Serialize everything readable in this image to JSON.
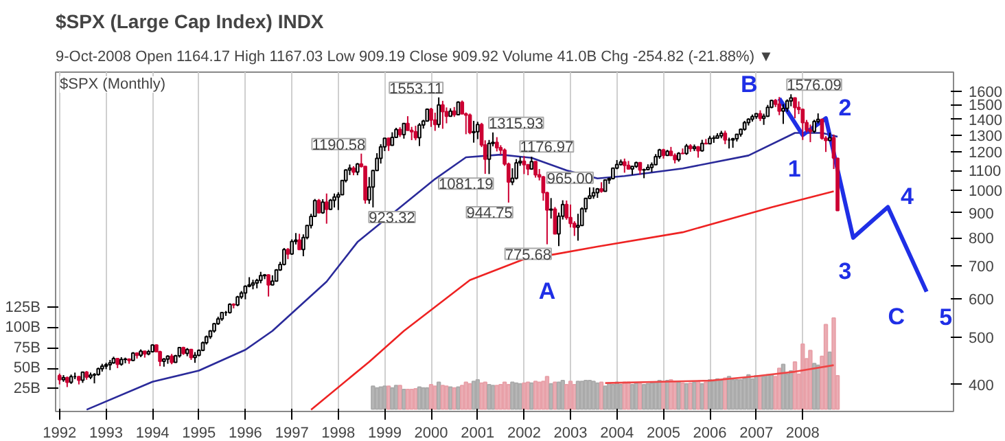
{
  "chart_data": {
    "type": "candlestick",
    "title": "$SPX (Large Cap Index) INDX",
    "subtitle": "9-Oct-2008      Open 1164.17   High 1167.03   Low 909.19   Close 909.92   Volume 41.0B   Chg -254.82 (-21.88%) ▼",
    "x": [
      "1992-01",
      "1992-02",
      "1992-03",
      "1992-04",
      "1992-05",
      "1992-06",
      "1992-07",
      "1992-08",
      "1992-09",
      "1992-10",
      "1992-11",
      "1992-12",
      "1993-01",
      "1993-02",
      "1993-03",
      "1993-04",
      "1993-05",
      "1993-06",
      "1993-07",
      "1993-08",
      "1993-09",
      "1993-10",
      "1993-11",
      "1993-12",
      "1994-01",
      "1994-02",
      "1994-03",
      "1994-04",
      "1994-05",
      "1994-06",
      "1994-07",
      "1994-08",
      "1994-09",
      "1994-10",
      "1994-11",
      "1994-12",
      "1995-01",
      "1995-02",
      "1995-03",
      "1995-04",
      "1995-05",
      "1995-06",
      "1995-07",
      "1995-08",
      "1995-09",
      "1995-10",
      "1995-11",
      "1995-12",
      "1996-01",
      "1996-02",
      "1996-03",
      "1996-04",
      "1996-05",
      "1996-06",
      "1996-07",
      "1996-08",
      "1996-09",
      "1996-10",
      "1996-11",
      "1996-12",
      "1997-01",
      "1997-02",
      "1997-03",
      "1997-04",
      "1997-05",
      "1997-06",
      "1997-07",
      "1997-08",
      "1997-09",
      "1997-10",
      "1997-11",
      "1997-12",
      "1998-01",
      "1998-02",
      "1998-03",
      "1998-04",
      "1998-05",
      "1998-06",
      "1998-07",
      "1998-08",
      "1998-09",
      "1998-10",
      "1998-11",
      "1998-12",
      "1999-01",
      "1999-02",
      "1999-03",
      "1999-04",
      "1999-05",
      "1999-06",
      "1999-07",
      "1999-08",
      "1999-09",
      "1999-10",
      "1999-11",
      "1999-12",
      "2000-01",
      "2000-02",
      "2000-03",
      "2000-04",
      "2000-05",
      "2000-06",
      "2000-07",
      "2000-08",
      "2000-09",
      "2000-10",
      "2000-11",
      "2000-12",
      "2001-01",
      "2001-02",
      "2001-03",
      "2001-04",
      "2001-05",
      "2001-06",
      "2001-07",
      "2001-08",
      "2001-09",
      "2001-10",
      "2001-11",
      "2001-12",
      "2002-01",
      "2002-02",
      "2002-03",
      "2002-04",
      "2002-05",
      "2002-06",
      "2002-07",
      "2002-08",
      "2002-09",
      "2002-10",
      "2002-11",
      "2002-12",
      "2003-01",
      "2003-02",
      "2003-03",
      "2003-04",
      "2003-05",
      "2003-06",
      "2003-07",
      "2003-08",
      "2003-09",
      "2003-10",
      "2003-11",
      "2003-12",
      "2004-01",
      "2004-02",
      "2004-03",
      "2004-04",
      "2004-05",
      "2004-06",
      "2004-07",
      "2004-08",
      "2004-09",
      "2004-10",
      "2004-11",
      "2004-12",
      "2005-01",
      "2005-02",
      "2005-03",
      "2005-04",
      "2005-05",
      "2005-06",
      "2005-07",
      "2005-08",
      "2005-09",
      "2005-10",
      "2005-11",
      "2005-12",
      "2006-01",
      "2006-02",
      "2006-03",
      "2006-04",
      "2006-05",
      "2006-06",
      "2006-07",
      "2006-08",
      "2006-09",
      "2006-10",
      "2006-11",
      "2006-12",
      "2007-01",
      "2007-02",
      "2007-03",
      "2007-04",
      "2007-05",
      "2007-06",
      "2007-07",
      "2007-08",
      "2007-09",
      "2007-10",
      "2007-11",
      "2007-12",
      "2008-01",
      "2008-02",
      "2008-03",
      "2008-04",
      "2008-05",
      "2008-06",
      "2008-07",
      "2008-08",
      "2008-09",
      "2008-10"
    ],
    "ohlc": [
      [
        417,
        421,
        400,
        409
      ],
      [
        409,
        418,
        405,
        413
      ],
      [
        413,
        415,
        395,
        404
      ],
      [
        404,
        419,
        401,
        415
      ],
      [
        415,
        423,
        410,
        415
      ],
      [
        415,
        416,
        400,
        408
      ],
      [
        408,
        425,
        403,
        424
      ],
      [
        424,
        426,
        409,
        414
      ],
      [
        414,
        423,
        410,
        418
      ],
      [
        418,
        422,
        402,
        419
      ],
      [
        419,
        433,
        417,
        431
      ],
      [
        431,
        441,
        425,
        436
      ],
      [
        436,
        443,
        430,
        439
      ],
      [
        439,
        449,
        428,
        443
      ],
      [
        443,
        456,
        441,
        452
      ],
      [
        452,
        452,
        432,
        440
      ],
      [
        440,
        455,
        437,
        450
      ],
      [
        450,
        454,
        442,
        451
      ],
      [
        451,
        452,
        441,
        448
      ],
      [
        448,
        466,
        447,
        464
      ],
      [
        464,
        465,
        452,
        459
      ],
      [
        459,
        472,
        455,
        468
      ],
      [
        468,
        468,
        454,
        462
      ],
      [
        462,
        471,
        459,
        467
      ],
      [
        467,
        483,
        465,
        482
      ],
      [
        482,
        483,
        466,
        467
      ],
      [
        467,
        469,
        436,
        446
      ],
      [
        446,
        453,
        435,
        451
      ],
      [
        451,
        459,
        441,
        457
      ],
      [
        457,
        462,
        440,
        444
      ],
      [
        444,
        460,
        443,
        458
      ],
      [
        458,
        477,
        454,
        476
      ],
      [
        476,
        478,
        460,
        463
      ],
      [
        463,
        475,
        457,
        472
      ],
      [
        472,
        473,
        449,
        454
      ],
      [
        454,
        466,
        443,
        459
      ],
      [
        459,
        472,
        457,
        470
      ],
      [
        470,
        490,
        468,
        487
      ],
      [
        487,
        504,
        483,
        501
      ],
      [
        501,
        517,
        496,
        515
      ],
      [
        515,
        535,
        511,
        533
      ],
      [
        533,
        551,
        530,
        545
      ],
      [
        545,
        563,
        540,
        562
      ],
      [
        562,
        566,
        553,
        562
      ],
      [
        562,
        587,
        559,
        584
      ],
      [
        584,
        587,
        573,
        582
      ],
      [
        582,
        608,
        579,
        605
      ],
      [
        605,
        622,
        599,
        616
      ],
      [
        616,
        639,
        598,
        636
      ],
      [
        636,
        664,
        633,
        640
      ],
      [
        640,
        656,
        627,
        646
      ],
      [
        646,
        659,
        630,
        654
      ],
      [
        654,
        681,
        645,
        669
      ],
      [
        669,
        674,
        658,
        671
      ],
      [
        671,
        673,
        606,
        640
      ],
      [
        640,
        670,
        639,
        652
      ],
      [
        652,
        690,
        652,
        687
      ],
      [
        687,
        714,
        684,
        705
      ],
      [
        705,
        762,
        702,
        757
      ],
      [
        757,
        762,
        723,
        741
      ],
      [
        741,
        794,
        738,
        786
      ],
      [
        786,
        818,
        775,
        791
      ],
      [
        791,
        815,
        755,
        757
      ],
      [
        757,
        813,
        733,
        801
      ],
      [
        801,
        849,
        794,
        848
      ],
      [
        848,
        896,
        836,
        885
      ],
      [
        885,
        961,
        884,
        954
      ],
      [
        954,
        961,
        899,
        900
      ],
      [
        900,
        960,
        896,
        947
      ],
      [
        947,
        986,
        855,
        915
      ],
      [
        915,
        961,
        912,
        955
      ],
      [
        955,
        986,
        923,
        970
      ],
      [
        970,
        992,
        912,
        980
      ],
      [
        980,
        1050,
        980,
        1049
      ],
      [
        1049,
        1106,
        1039,
        1102
      ],
      [
        1102,
        1131,
        1076,
        1112
      ],
      [
        1112,
        1122,
        1075,
        1091
      ],
      [
        1091,
        1139,
        1075,
        1134
      ],
      [
        1134,
        1190.58,
        1115,
        1121
      ],
      [
        1121,
        1122,
        940,
        957
      ],
      [
        957,
        1066,
        939,
        1017
      ],
      [
        1017,
        1103,
        923.32,
        1099
      ],
      [
        1099,
        1193,
        1098,
        1164
      ],
      [
        1164,
        1245,
        1136,
        1229
      ],
      [
        1229,
        1281,
        1205,
        1280
      ],
      [
        1280,
        1283,
        1206,
        1238
      ],
      [
        1238,
        1317,
        1236,
        1286
      ],
      [
        1286,
        1345,
        1282,
        1335
      ],
      [
        1335,
        1349,
        1288,
        1302
      ],
      [
        1302,
        1374,
        1278,
        1373
      ],
      [
        1373,
        1421,
        1328,
        1329
      ],
      [
        1329,
        1351,
        1269,
        1320
      ],
      [
        1320,
        1358,
        1268,
        1283
      ],
      [
        1283,
        1375,
        1234,
        1363
      ],
      [
        1363,
        1397,
        1340,
        1389
      ],
      [
        1389,
        1474,
        1387,
        1469
      ],
      [
        1469,
        1478,
        1351,
        1395
      ],
      [
        1395,
        1445,
        1326,
        1366
      ],
      [
        1366,
        1553.11,
        1346,
        1499
      ],
      [
        1499,
        1528,
        1339,
        1452
      ],
      [
        1452,
        1481,
        1374,
        1421
      ],
      [
        1421,
        1475,
        1418,
        1455
      ],
      [
        1455,
        1484,
        1416,
        1431
      ],
      [
        1431,
        1525,
        1431,
        1518
      ],
      [
        1518,
        1530,
        1436,
        1437
      ],
      [
        1437,
        1446,
        1305,
        1429
      ],
      [
        1429,
        1439,
        1305,
        1315
      ],
      [
        1315,
        1390,
        1254,
        1320
      ],
      [
        1320,
        1384,
        1275,
        1366
      ],
      [
        1366,
        1377,
        1228,
        1240
      ],
      [
        1240,
        1268,
        1082,
        1160
      ],
      [
        1160,
        1270,
        1081.19,
        1250
      ],
      [
        1250,
        1315.93,
        1232,
        1256
      ],
      [
        1256,
        1287,
        1203,
        1224
      ],
      [
        1224,
        1239,
        1185,
        1211
      ],
      [
        1211,
        1220,
        1124,
        1134
      ],
      [
        1134,
        1141,
        944.75,
        1041
      ],
      [
        1041,
        1111,
        1026,
        1060
      ],
      [
        1060,
        1160,
        1054,
        1140
      ],
      [
        1140,
        1173,
        1124,
        1148
      ],
      [
        1148,
        1176.97,
        1081,
        1130
      ],
      [
        1130,
        1130,
        1075,
        1107
      ],
      [
        1107,
        1173,
        1103,
        1147
      ],
      [
        1147,
        1147,
        1063,
        1077
      ],
      [
        1077,
        1107,
        1049,
        1067
      ],
      [
        1067,
        1071,
        953,
        990
      ],
      [
        990,
        994,
        775.68,
        912
      ],
      [
        912,
        965.0,
        876,
        916
      ],
      [
        916,
        925,
        815,
        815
      ],
      [
        815,
        901,
        769,
        886
      ],
      [
        886,
        955,
        872,
        936
      ],
      [
        936,
        954,
        871,
        880
      ],
      [
        880,
        936,
        840,
        856
      ],
      [
        856,
        865,
        807,
        841
      ],
      [
        841,
        896,
        789,
        848
      ],
      [
        848,
        924,
        847,
        917
      ],
      [
        917,
        965,
        902,
        964
      ],
      [
        964,
        1015,
        960,
        975
      ],
      [
        975,
        1015,
        962,
        990
      ],
      [
        990,
        1012,
        966,
        1008
      ],
      [
        1008,
        1040,
        990,
        996
      ],
      [
        996,
        1054,
        996,
        1051
      ],
      [
        1051,
        1063,
        1032,
        1058
      ],
      [
        1058,
        1112,
        1054,
        1112
      ],
      [
        1112,
        1155,
        1106,
        1131
      ],
      [
        1131,
        1158,
        1125,
        1145
      ],
      [
        1145,
        1163,
        1088,
        1126
      ],
      [
        1126,
        1150,
        1107,
        1107
      ],
      [
        1107,
        1123,
        1077,
        1121
      ],
      [
        1121,
        1146,
        1113,
        1141
      ],
      [
        1141,
        1141,
        1078,
        1102
      ],
      [
        1102,
        1109,
        1060,
        1104
      ],
      [
        1104,
        1132,
        1102,
        1115
      ],
      [
        1115,
        1142,
        1091,
        1130
      ],
      [
        1130,
        1188,
        1128,
        1174
      ],
      [
        1174,
        1218,
        1162,
        1212
      ],
      [
        1212,
        1218,
        1163,
        1181
      ],
      [
        1181,
        1212,
        1180,
        1204
      ],
      [
        1204,
        1229,
        1177,
        1181
      ],
      [
        1181,
        1192,
        1137,
        1157
      ],
      [
        1157,
        1199,
        1146,
        1192
      ],
      [
        1192,
        1220,
        1188,
        1191
      ],
      [
        1191,
        1246,
        1184,
        1234
      ],
      [
        1234,
        1245,
        1201,
        1220
      ],
      [
        1220,
        1243,
        1205,
        1229
      ],
      [
        1229,
        1233,
        1168,
        1207
      ],
      [
        1207,
        1271,
        1202,
        1250
      ],
      [
        1250,
        1276,
        1245,
        1248
      ],
      [
        1248,
        1295,
        1245,
        1280
      ],
      [
        1280,
        1297,
        1253,
        1281
      ],
      [
        1281,
        1311,
        1277,
        1295
      ],
      [
        1295,
        1326,
        1280,
        1311
      ],
      [
        1311,
        1327,
        1245,
        1270
      ],
      [
        1270,
        1284,
        1220,
        1270
      ],
      [
        1270,
        1283,
        1224,
        1277
      ],
      [
        1277,
        1306,
        1261,
        1304
      ],
      [
        1304,
        1340,
        1290,
        1336
      ],
      [
        1336,
        1390,
        1327,
        1378
      ],
      [
        1378,
        1407,
        1360,
        1401
      ],
      [
        1401,
        1432,
        1385,
        1418
      ],
      [
        1418,
        1441,
        1403,
        1438
      ],
      [
        1438,
        1461,
        1389,
        1407
      ],
      [
        1407,
        1438,
        1364,
        1421
      ],
      [
        1421,
        1499,
        1416,
        1482
      ],
      [
        1482,
        1535,
        1476,
        1531
      ],
      [
        1531,
        1541,
        1484,
        1503
      ],
      [
        1503,
        1556,
        1428,
        1455
      ],
      [
        1455,
        1504,
        1370,
        1474
      ],
      [
        1474,
        1539,
        1451,
        1527
      ],
      [
        1527,
        1576.09,
        1489,
        1549
      ],
      [
        1549,
        1550,
        1407,
        1481
      ],
      [
        1481,
        1524,
        1435,
        1468
      ],
      [
        1468,
        1472,
        1270,
        1379
      ],
      [
        1379,
        1396,
        1317,
        1331
      ],
      [
        1331,
        1366,
        1257,
        1323
      ],
      [
        1323,
        1397,
        1312,
        1386
      ],
      [
        1386,
        1440,
        1373,
        1400
      ],
      [
        1400,
        1404,
        1272,
        1280
      ],
      [
        1280,
        1293,
        1200,
        1267
      ],
      [
        1267,
        1314,
        1264,
        1283
      ],
      [
        1283,
        1303,
        1107,
        1166
      ],
      [
        1164.17,
        1167.03,
        909.19,
        909.92
      ]
    ],
    "colors": [
      "#cc0033",
      "#000000",
      "#cc0033",
      "#000000",
      "#000000",
      "#cc0033",
      "#000000",
      "#cc0033",
      "#000000",
      "#000000",
      "#000000",
      "#000000",
      "#000000",
      "#000000",
      "#000000",
      "#cc0033",
      "#000000",
      "#000000",
      "#cc0033",
      "#000000",
      "#cc0033",
      "#000000",
      "#cc0033",
      "#000000",
      "#000000",
      "#cc0033",
      "#cc0033",
      "#000000",
      "#000000",
      "#cc0033",
      "#000000",
      "#000000",
      "#cc0033",
      "#000000",
      "#cc0033",
      "#000000",
      "#000000",
      "#000000",
      "#000000",
      "#000000",
      "#000000",
      "#000000",
      "#000000",
      "#000000",
      "#000000",
      "#cc0033",
      "#000000",
      "#000000",
      "#000000",
      "#000000",
      "#000000",
      "#000000",
      "#000000",
      "#000000",
      "#cc0033",
      "#000000",
      "#000000",
      "#000000",
      "#000000",
      "#cc0033",
      "#000000",
      "#000000",
      "#cc0033",
      "#000000",
      "#000000",
      "#000000",
      "#000000",
      "#cc0033",
      "#000000",
      "#cc0033",
      "#000000",
      "#000000",
      "#000000",
      "#000000",
      "#000000",
      "#000000",
      "#cc0033",
      "#000000",
      "#cc0033",
      "#cc0033",
      "#000000",
      "#000000",
      "#000000",
      "#000000",
      "#000000",
      "#cc0033",
      "#000000",
      "#000000",
      "#cc0033",
      "#000000",
      "#cc0033",
      "#cc0033",
      "#cc0033",
      "#000000",
      "#000000",
      "#000000",
      "#cc0033",
      "#cc0033",
      "#000000",
      "#cc0033",
      "#cc0033",
      "#000000",
      "#cc0033",
      "#000000",
      "#cc0033",
      "#cc0033",
      "#cc0033",
      "#000000",
      "#000000",
      "#cc0033",
      "#cc0033",
      "#000000",
      "#000000",
      "#cc0033",
      "#cc0033",
      "#cc0033",
      "#cc0033",
      "#000000",
      "#000000",
      "#000000",
      "#cc0033",
      "#cc0033",
      "#000000",
      "#cc0033",
      "#cc0033",
      "#cc0033",
      "#cc0033",
      "#000000",
      "#cc0033",
      "#000000",
      "#000000",
      "#cc0033",
      "#cc0033",
      "#cc0033",
      "#000000",
      "#000000",
      "#000000",
      "#000000",
      "#000000",
      "#000000",
      "#cc0033",
      "#000000",
      "#000000",
      "#000000",
      "#000000",
      "#000000",
      "#cc0033",
      "#cc0033",
      "#000000",
      "#000000",
      "#cc0033",
      "#000000",
      "#000000",
      "#000000",
      "#000000",
      "#000000",
      "#cc0033",
      "#000000",
      "#cc0033",
      "#cc0033",
      "#000000",
      "#cc0033",
      "#000000",
      "#cc0033",
      "#000000",
      "#cc0033",
      "#000000",
      "#cc0033",
      "#000000",
      "#000000",
      "#000000",
      "#000000",
      "#cc0033",
      "#000000",
      "#000000",
      "#000000",
      "#000000",
      "#000000",
      "#000000",
      "#000000",
      "#000000",
      "#cc0033",
      "#000000",
      "#000000",
      "#000000",
      "#cc0033",
      "#cc0033",
      "#000000",
      "#000000",
      "#000000",
      "#cc0033",
      "#cc0033",
      "#cc0033",
      "#cc0033",
      "#cc0033",
      "#000000",
      "#000000",
      "#cc0033",
      "#cc0033",
      "#000000",
      "#cc0033",
      "#cc0033"
    ],
    "series": [
      {
        "type": "line",
        "color": "#2a2a9a",
        "x": [
          "1992-08",
          "1994-01",
          "1995-01",
          "1996-01",
          "1996-08",
          "1997-10",
          "1998-06",
          "2000-02",
          "2000-10",
          "2001-07",
          "2002-03",
          "2002-12",
          "2003-08",
          "2004-03",
          "2005-06",
          "2006-11",
          "2007-11",
          "2008-06",
          "2008-10"
        ],
        "values": [
          355,
          405,
          427,
          471,
          515,
          650,
          784,
          1056,
          1170,
          1185,
          1167,
          1100,
          1059,
          1071,
          1110,
          1180,
          1313,
          1313,
          1290
        ]
      },
      {
        "type": "line",
        "color": "#ee2222",
        "x": [
          "1997-06",
          "1998-09",
          "1999-06",
          "2000-11",
          "2002-01",
          "2002-09",
          "2003-08",
          "2005-06",
          "2007-05",
          "2008-09"
        ],
        "values": [
          355,
          445,
          515,
          655,
          723,
          740,
          767,
          821,
          924,
          996
        ]
      },
      {
        "type": "bar",
        "axis": "y2",
        "x": [
          "1998-10",
          "1998-11",
          "1998-12",
          "1999-01",
          "1999-02",
          "1999-03",
          "1999-04",
          "1999-05",
          "1999-06",
          "1999-07",
          "1999-08",
          "1999-09",
          "1999-10",
          "1999-11",
          "1999-12",
          "2000-01",
          "2000-02",
          "2000-03",
          "2000-04",
          "2000-05",
          "2000-06",
          "2000-07",
          "2000-08",
          "2000-09",
          "2000-10",
          "2000-11",
          "2000-12",
          "2001-01",
          "2001-02",
          "2001-03",
          "2001-04",
          "2001-05",
          "2001-06",
          "2001-07",
          "2001-08",
          "2001-09",
          "2001-10",
          "2001-11",
          "2001-12",
          "2002-01",
          "2002-02",
          "2002-03",
          "2002-04",
          "2002-05",
          "2002-06",
          "2002-07",
          "2002-08",
          "2002-09",
          "2002-10",
          "2002-11",
          "2002-12",
          "2003-01",
          "2003-02",
          "2003-03",
          "2003-04",
          "2003-05",
          "2003-06",
          "2003-07",
          "2003-08",
          "2003-09",
          "2003-10",
          "2003-11",
          "2003-12",
          "2004-01",
          "2004-02",
          "2004-03",
          "2004-04",
          "2004-05",
          "2004-06",
          "2004-07",
          "2004-08",
          "2004-09",
          "2004-10",
          "2004-11",
          "2004-12",
          "2005-01",
          "2005-02",
          "2005-03",
          "2005-04",
          "2005-05",
          "2005-06",
          "2005-07",
          "2005-08",
          "2005-09",
          "2005-10",
          "2005-11",
          "2005-12",
          "2006-01",
          "2006-02",
          "2006-03",
          "2006-04",
          "2006-05",
          "2006-06",
          "2006-07",
          "2006-08",
          "2006-09",
          "2006-10",
          "2006-11",
          "2006-12",
          "2007-01",
          "2007-02",
          "2007-03",
          "2007-04",
          "2007-05",
          "2007-06",
          "2007-07",
          "2007-08",
          "2007-09",
          "2007-10",
          "2007-11",
          "2007-12",
          "2008-01",
          "2008-02",
          "2008-03",
          "2008-04",
          "2008-05",
          "2008-06",
          "2008-07",
          "2008-08",
          "2008-09",
          "2008-10"
        ],
        "values": [
          28,
          26,
          27,
          28,
          28,
          26,
          29,
          29,
          24,
          24,
          24,
          25,
          27,
          26,
          26,
          30,
          28,
          33,
          29,
          28,
          27,
          26,
          27,
          29,
          33,
          31,
          34,
          36,
          32,
          33,
          30,
          29,
          29,
          30,
          33,
          30,
          33,
          32,
          31,
          32,
          33,
          32,
          34,
          33,
          34,
          40,
          31,
          33,
          33,
          35,
          30,
          34,
          30,
          34,
          34,
          35,
          35,
          34,
          32,
          33,
          28,
          32,
          30,
          33,
          30,
          33,
          33,
          30,
          32,
          31,
          30,
          31,
          32,
          33,
          35,
          34,
          35,
          36,
          33,
          33,
          32,
          31,
          32,
          33,
          34,
          31,
          33,
          36,
          34,
          37,
          35,
          38,
          40,
          36,
          36,
          36,
          38,
          42,
          37,
          41,
          40,
          40,
          42,
          42,
          40,
          50,
          55,
          43,
          47,
          58,
          43,
          80,
          62,
          72,
          56,
          54,
          65,
          104,
          70,
          112,
          41
        ],
        "colors": [
          "#aaaaaa",
          "#aaaaaa",
          "#aaaaaa",
          "#aaaaaa",
          "#e8a0a8",
          "#aaaaaa",
          "#aaaaaa",
          "#e8a0a8",
          "#aaaaaa",
          "#e8a0a8",
          "#e8a0a8",
          "#e8a0a8",
          "#aaaaaa",
          "#aaaaaa",
          "#aaaaaa",
          "#e8a0a8",
          "#e8a0a8",
          "#aaaaaa",
          "#e8a0a8",
          "#e8a0a8",
          "#aaaaaa",
          "#e8a0a8",
          "#aaaaaa",
          "#e8a0a8",
          "#e8a0a8",
          "#e8a0a8",
          "#aaaaaa",
          "#aaaaaa",
          "#e8a0a8",
          "#e8a0a8",
          "#aaaaaa",
          "#aaaaaa",
          "#e8a0a8",
          "#e8a0a8",
          "#e8a0a8",
          "#e8a0a8",
          "#aaaaaa",
          "#aaaaaa",
          "#aaaaaa",
          "#e8a0a8",
          "#e8a0a8",
          "#aaaaaa",
          "#e8a0a8",
          "#e8a0a8",
          "#e8a0a8",
          "#e8a0a8",
          "#aaaaaa",
          "#e8a0a8",
          "#aaaaaa",
          "#aaaaaa",
          "#e8a0a8",
          "#e8a0a8",
          "#e8a0a8",
          "#aaaaaa",
          "#aaaaaa",
          "#aaaaaa",
          "#aaaaaa",
          "#aaaaaa",
          "#aaaaaa",
          "#e8a0a8",
          "#aaaaaa",
          "#aaaaaa",
          "#aaaaaa",
          "#aaaaaa",
          "#aaaaaa",
          "#e8a0a8",
          "#e8a0a8",
          "#aaaaaa",
          "#aaaaaa",
          "#e8a0a8",
          "#aaaaaa",
          "#aaaaaa",
          "#aaaaaa",
          "#aaaaaa",
          "#aaaaaa",
          "#e8a0a8",
          "#aaaaaa",
          "#e8a0a8",
          "#e8a0a8",
          "#aaaaaa",
          "#e8a0a8",
          "#aaaaaa",
          "#e8a0a8",
          "#aaaaaa",
          "#e8a0a8",
          "#aaaaaa",
          "#e8a0a8",
          "#aaaaaa",
          "#aaaaaa",
          "#aaaaaa",
          "#aaaaaa",
          "#e8a0a8",
          "#aaaaaa",
          "#aaaaaa",
          "#aaaaaa",
          "#aaaaaa",
          "#aaaaaa",
          "#aaaaaa",
          "#aaaaaa",
          "#aaaaaa",
          "#e8a0a8",
          "#aaaaaa",
          "#aaaaaa",
          "#aaaaaa",
          "#e8a0a8",
          "#e8a0a8",
          "#aaaaaa",
          "#aaaaaa",
          "#aaaaaa",
          "#e8a0a8",
          "#e8a0a8",
          "#e8a0a8",
          "#e8a0a8",
          "#e8a0a8",
          "#aaaaaa",
          "#aaaaaa",
          "#e8a0a8",
          "#e8a0a8",
          "#aaaaaa",
          "#e8a0a8",
          "#e8a0a8"
        ]
      },
      {
        "type": "line",
        "axis": "y2",
        "color": "#ee4444",
        "x": [
          "2003-10",
          "2006-01",
          "2006-12",
          "2007-11",
          "2008-09"
        ],
        "values": [
          32,
          35,
          40,
          46,
          54
        ]
      },
      {
        "type": "line",
        "color": "#1f2fe6",
        "x": [
          "2007-07",
          "2008-01",
          "2008-07",
          "2009-02",
          "2009-11",
          "2010-09"
        ],
        "values": [
          1545,
          1300,
          1407,
          800,
          925,
          620
        ]
      }
    ],
    "annotations": [
      "$SPX (Monthly)",
      {
        "text": "1190.58",
        "x": "1998-07",
        "y": 1190.58
      },
      {
        "text": "923.32",
        "x": "1998-10",
        "y": 923.32
      },
      {
        "text": "1553.11",
        "x": "2000-03",
        "y": 1553.11
      },
      {
        "text": "1315.93",
        "x": "2001-05",
        "y": 1315.93
      },
      {
        "text": "1081.19",
        "x": "2001-04",
        "y": 1081.19
      },
      {
        "text": "944.75",
        "x": "2001-09",
        "y": 944.75
      },
      {
        "text": "1176.97",
        "x": "2002-01",
        "y": 1176.97
      },
      {
        "text": "965.00",
        "x": "2002-08",
        "y": 965.0
      },
      {
        "text": "775.68",
        "x": "2002-07",
        "y": 775.68
      },
      {
        "text": "1576.09",
        "x": "2007-10",
        "y": 1576.09
      },
      {
        "text": "A",
        "x": "2002-07",
        "y": 775.68
      },
      {
        "text": "B",
        "x": "2007-07",
        "y": 1545
      },
      {
        "text": "1",
        "x": "2008-01",
        "y": 1300
      },
      {
        "text": "2",
        "x": "2008-07",
        "y": 1407
      },
      {
        "text": "3",
        "x": "2009-02",
        "y": 800
      },
      {
        "text": "4",
        "x": "2009-11",
        "y": 925
      },
      {
        "text": "5",
        "x": "2010-09",
        "y": 620
      },
      {
        "text": "C",
        "x": "2010-09",
        "y": 620
      }
    ],
    "log": "y",
    "grid": true,
    "xlim": [
      "1991-12-01",
      "2011-04-01"
    ],
    "xticks": [
      "1992",
      "1993",
      "1994",
      "1995",
      "1996",
      "1997",
      "1998",
      "1999",
      "2000",
      "2001",
      "2002",
      "2003",
      "2004",
      "2005",
      "2006",
      "2007",
      "2008"
    ],
    "ylim": [
      352,
      1750
    ],
    "yticks": [
      400,
      500,
      600,
      700,
      800,
      900,
      1000,
      1100,
      1200,
      1300,
      1400,
      1500,
      1600
    ],
    "y2lim": [
      -3,
      415
    ],
    "y2ticks": [
      {
        "value": 25,
        "label": "25B"
      },
      {
        "value": 50,
        "label": "50B"
      },
      {
        "value": 75,
        "label": "75B"
      },
      {
        "value": 100,
        "label": "100B"
      },
      {
        "value": 125,
        "label": "125B"
      }
    ]
  }
}
